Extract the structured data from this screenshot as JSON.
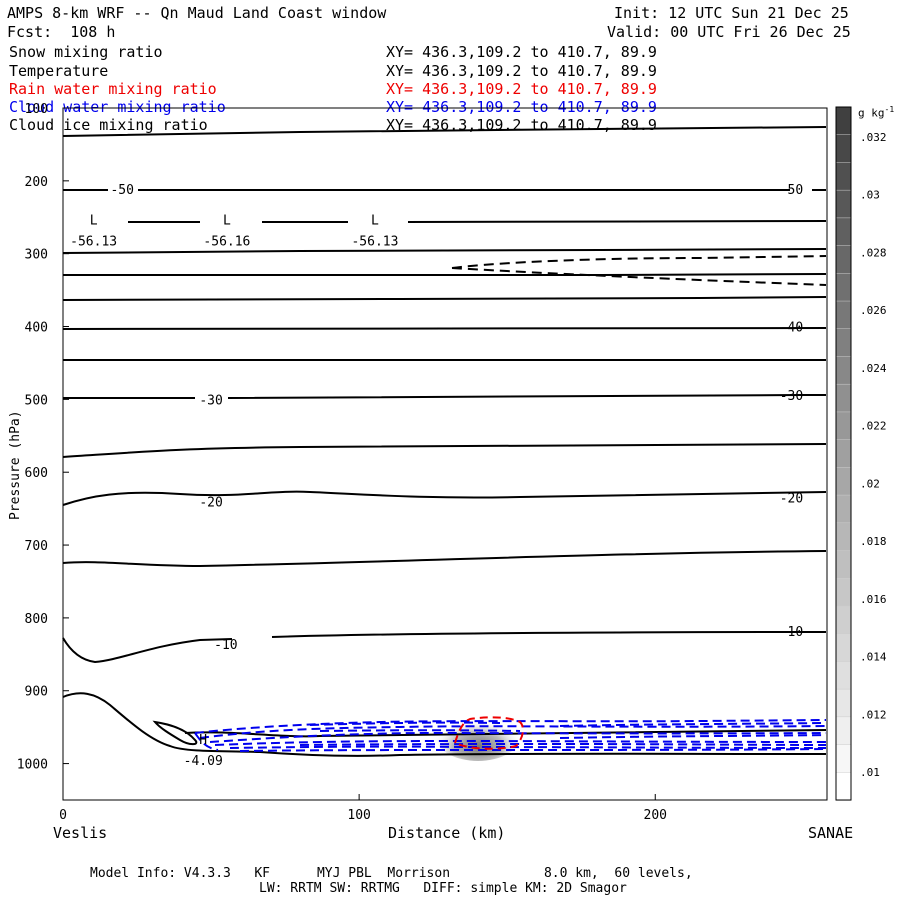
{
  "header": {
    "title": "AMPS 8-km WRF -- Qn Maud Land Coast window",
    "init": "Init: 12 UTC Sun 21 Dec 25",
    "forecast": "Fcst:  108 h",
    "valid": "Valid: 00 UTC Fri 26 Dec 25"
  },
  "legend": [
    {
      "name": "Snow mixing ratio",
      "xy": "XY= 436.3,109.2 to 410.7, 89.9",
      "color": "#000000"
    },
    {
      "name": "Temperature",
      "xy": "XY= 436.3,109.2 to 410.7, 89.9",
      "color": "#000000"
    },
    {
      "name": "Rain water mixing ratio",
      "xy": "XY= 436.3,109.2 to 410.7, 89.9",
      "color": "#ee0000"
    },
    {
      "name": "Cloud water mixing ratio",
      "xy": "XY= 436.3,109.2 to 410.7, 89.9",
      "color": "#0000ee"
    },
    {
      "name": "Cloud ice mixing ratio",
      "xy": "XY= 436.3,109.2 to 410.7, 89.9",
      "color": "#000000"
    }
  ],
  "colorbar": {
    "unit": "g kg",
    "unit_exp": "-1",
    "labels": [
      ".032",
      ".03",
      ".028",
      ".026",
      ".024",
      ".022",
      ".02",
      ".018",
      ".016",
      ".014",
      ".012",
      ".01"
    ],
    "levels": [
      0.033,
      0.032,
      0.031,
      0.03,
      0.029,
      0.028,
      0.027,
      0.026,
      0.025,
      0.024,
      0.023,
      0.022,
      0.021,
      0.02,
      0.019,
      0.018,
      0.017,
      0.016,
      0.015,
      0.014,
      0.013,
      0.012,
      0.011,
      0.01,
      0.009
    ]
  },
  "footer": {
    "line1": "Model Info: V4.3.3   KF      MYJ PBL  Morrison            8.0 km,  60 levels,",
    "line2": "LW: RRTM SW: RRTMG   DIFF: simple KM: 2D Smagor"
  },
  "chart_data": {
    "type": "cross-section contour",
    "xlabel": "Distance (km)",
    "ylabel": "Pressure (hPa)",
    "xlim": [
      0,
      258
    ],
    "ylim": [
      1050,
      100
    ],
    "x_ticks": [
      0,
      100,
      200
    ],
    "y_ticks": [
      100,
      200,
      300,
      400,
      500,
      600,
      700,
      800,
      900,
      1000
    ],
    "left_endpoint": "Veslis",
    "right_endpoint": "SANAE",
    "temperature_labels": [
      {
        "text": "-50",
        "x": 20,
        "p": 211
      },
      {
        "text": "-50",
        "x": 246,
        "p": 211
      },
      {
        "text": "-40",
        "x": 246,
        "p": 400
      },
      {
        "text": "-30",
        "x": 50,
        "p": 500
      },
      {
        "text": "-30",
        "x": 246,
        "p": 494
      },
      {
        "text": "-20",
        "x": 50,
        "p": 640
      },
      {
        "text": "-20",
        "x": 246,
        "p": 635
      },
      {
        "text": "-10",
        "x": 55,
        "p": 836
      },
      {
        "text": "-10",
        "x": 246,
        "p": 818
      }
    ],
    "extrema": [
      {
        "kind": "L",
        "value": "-56.13",
        "x": 9,
        "p": 260
      },
      {
        "kind": "L",
        "value": "-56.16",
        "x": 54,
        "p": 260
      },
      {
        "kind": "L",
        "value": "-56.13",
        "x": 104,
        "p": 260
      },
      {
        "kind": "H",
        "value": "-4.09",
        "x": 46,
        "p": 973
      }
    ]
  }
}
